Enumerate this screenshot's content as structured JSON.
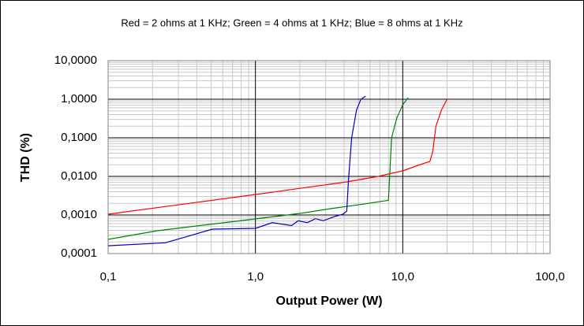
{
  "chart_data": {
    "type": "line",
    "title": "Red = 2 ohms at 1 KHz; Green = 4 ohms at 1 KHz; Blue = 8 ohms at 1 KHz",
    "x_label": "Output Power (W)",
    "y_label": "THD (%)",
    "xscale": "log",
    "yscale": "log",
    "grid": true,
    "xlim": [
      0.1,
      100
    ],
    "ylim": [
      0.0001,
      10
    ],
    "xticks": [
      {
        "value": 0.1,
        "label": "0,1"
      },
      {
        "value": 1,
        "label": "1,0"
      },
      {
        "value": 10,
        "label": "10,0"
      },
      {
        "value": 100,
        "label": "100,0"
      }
    ],
    "yticks": [
      {
        "value": 0.0001,
        "label": "0,0001"
      },
      {
        "value": 0.001,
        "label": "0,0010"
      },
      {
        "value": 0.01,
        "label": "0,0100"
      },
      {
        "value": 0.1,
        "label": "0,1000"
      },
      {
        "value": 1,
        "label": "1,0000"
      },
      {
        "value": 10,
        "label": "10,0000"
      }
    ],
    "series": [
      {
        "color": "#ff0000",
        "x": [
          0.1,
          1,
          4.17,
          6.8,
          10,
          12.7,
          15.3,
          16,
          16.8,
          18.3,
          20
        ],
        "values": [
          0.00105,
          0.0034,
          0.0072,
          0.01,
          0.0139,
          0.0193,
          0.0245,
          0.045,
          0.2,
          0.52,
          1.0
        ]
      },
      {
        "color": "#008000",
        "x": [
          0.1,
          0.216,
          1,
          2.0,
          3.27,
          5.35,
          8.0,
          8.4,
          9.1,
          10,
          10.9
        ],
        "values": [
          0.000233,
          0.00039,
          0.00079,
          0.0011,
          0.00146,
          0.0019,
          0.0024,
          0.1,
          0.32,
          0.72,
          1.1
        ]
      },
      {
        "color": "#0000c0",
        "x": [
          0.1,
          0.245,
          0.51,
          1,
          1.3,
          1.76,
          1.95,
          2.25,
          2.55,
          2.89,
          3.47,
          3.93,
          4.17,
          4.28,
          4.5,
          4.85,
          5.2,
          5.6
        ],
        "values": [
          0.000159,
          0.00019,
          0.00043,
          0.00045,
          0.00063,
          0.00053,
          0.00071,
          0.00063,
          0.0008,
          0.00071,
          0.00092,
          0.00105,
          0.00126,
          0.0076,
          0.1,
          0.52,
          1.0,
          1.2
        ]
      }
    ]
  }
}
